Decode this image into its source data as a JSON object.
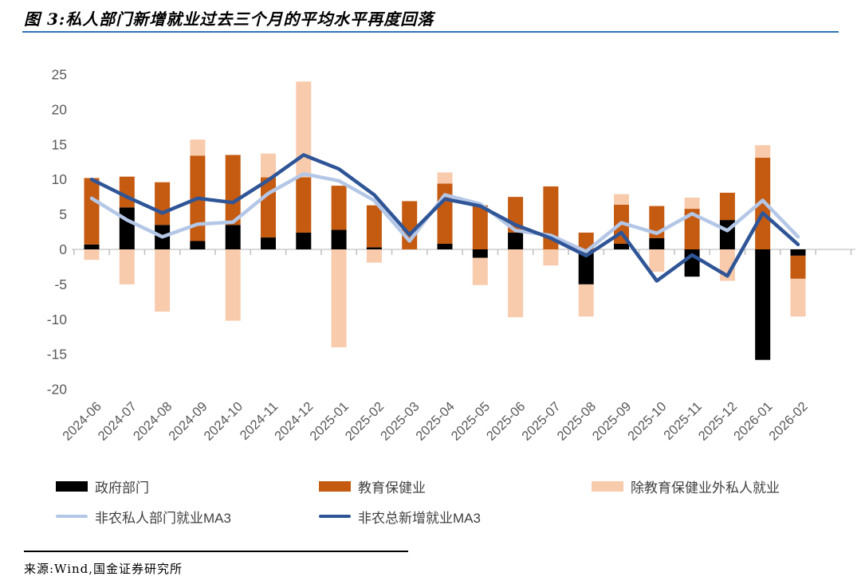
{
  "header": {
    "title": "图 3:私人部门新增就业过去三个月的平均水平再度回落"
  },
  "footer": {
    "source": "来源:Wind,国金证券研究所"
  },
  "colors": {
    "title_rule": "#2E74B5",
    "axis_line": "#D9D9D9",
    "tick": "#BFBFBF",
    "axis_label": "#595959",
    "legend_text": "#404040"
  },
  "chart_data": {
    "type": "bar",
    "subtype": "stacked-bar-with-lines",
    "stacked": true,
    "grid": false,
    "legend_position": "bottom",
    "ylim": [
      -20,
      25
    ],
    "yticks": [
      25,
      20,
      15,
      10,
      5,
      0,
      -5,
      -10,
      -15,
      -20
    ],
    "categories": [
      "2024-06",
      "2024-07",
      "2024-08",
      "2024-09",
      "2024-10",
      "2024-11",
      "2024-12",
      "2025-01",
      "2025-02",
      "2025-03",
      "2025-04",
      "2025-05",
      "2025-06",
      "2025-07",
      "2025-08",
      "2025-09",
      "2025-10",
      "2025-11",
      "2025-12",
      "2026-01",
      "2026-02"
    ],
    "series": [
      {
        "name": "政府部门",
        "type": "bar",
        "color": "#000000",
        "values": [
          0.7,
          6.0,
          3.5,
          1.2,
          3.5,
          1.7,
          2.4,
          2.8,
          0.3,
          0,
          0.8,
          -1.2,
          2.4,
          0,
          -5.0,
          0.8,
          1.6,
          -3.9,
          4.2,
          -15.8,
          -0.9
        ]
      },
      {
        "name": "教育保健业",
        "type": "bar",
        "color": "#C55A11",
        "values": [
          9.5,
          4.4,
          6.1,
          12.2,
          10.0,
          8.6,
          7.9,
          6.3,
          6.0,
          6.9,
          8.6,
          6.3,
          5.1,
          9.0,
          2.4,
          5.6,
          4.6,
          5.8,
          3.9,
          13.1,
          -3.3
        ]
      },
      {
        "name": "除教育保健业外私人就业",
        "type": "bar",
        "color": "#F8CBAD",
        "values": [
          -1.5,
          -5.0,
          -8.9,
          2.3,
          -10.2,
          3.4,
          13.7,
          -14.0,
          -1.9,
          0,
          1.6,
          -3.9,
          -9.7,
          -2.3,
          -4.6,
          1.5,
          -3.2,
          1.6,
          -4.5,
          1.8,
          -5.4
        ]
      },
      {
        "name": "非农私人部门就业MA3",
        "type": "line",
        "color": "#B4C7E7",
        "values": [
          7.3,
          4.2,
          1.8,
          3.6,
          3.9,
          8.0,
          10.8,
          9.8,
          7.0,
          1.2,
          7.8,
          6.5,
          2.7,
          2.0,
          -0.3,
          3.8,
          2.3,
          5.1,
          2.7,
          7.0,
          1.8
        ]
      },
      {
        "name": "非农总新增就业MA3",
        "type": "line",
        "color": "#2F5597",
        "values": [
          10.0,
          7.5,
          5.2,
          7.3,
          6.7,
          9.9,
          13.5,
          11.5,
          7.8,
          2.1,
          7.2,
          6.2,
          3.5,
          1.6,
          -0.9,
          2.4,
          -4.5,
          -0.8,
          -3.8,
          5.2,
          0.7
        ]
      }
    ]
  }
}
